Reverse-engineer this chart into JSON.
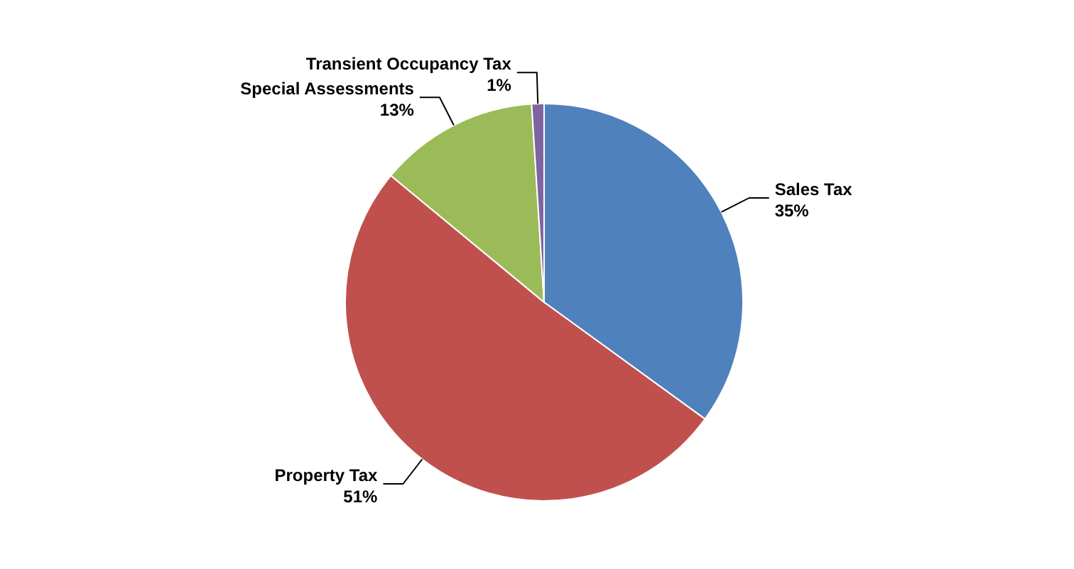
{
  "chart_data": {
    "type": "pie",
    "categories": [
      "Sales Tax",
      "Property Tax",
      "Special Assessments",
      "Transient Occupancy Tax"
    ],
    "values": [
      35,
      51,
      13,
      1
    ],
    "colors": [
      "#4f81bd",
      "#c0504d",
      "#9bbb59",
      "#8064a2"
    ],
    "value_labels": [
      "35%",
      "51%",
      "13%",
      "1%"
    ],
    "legend": false
  }
}
